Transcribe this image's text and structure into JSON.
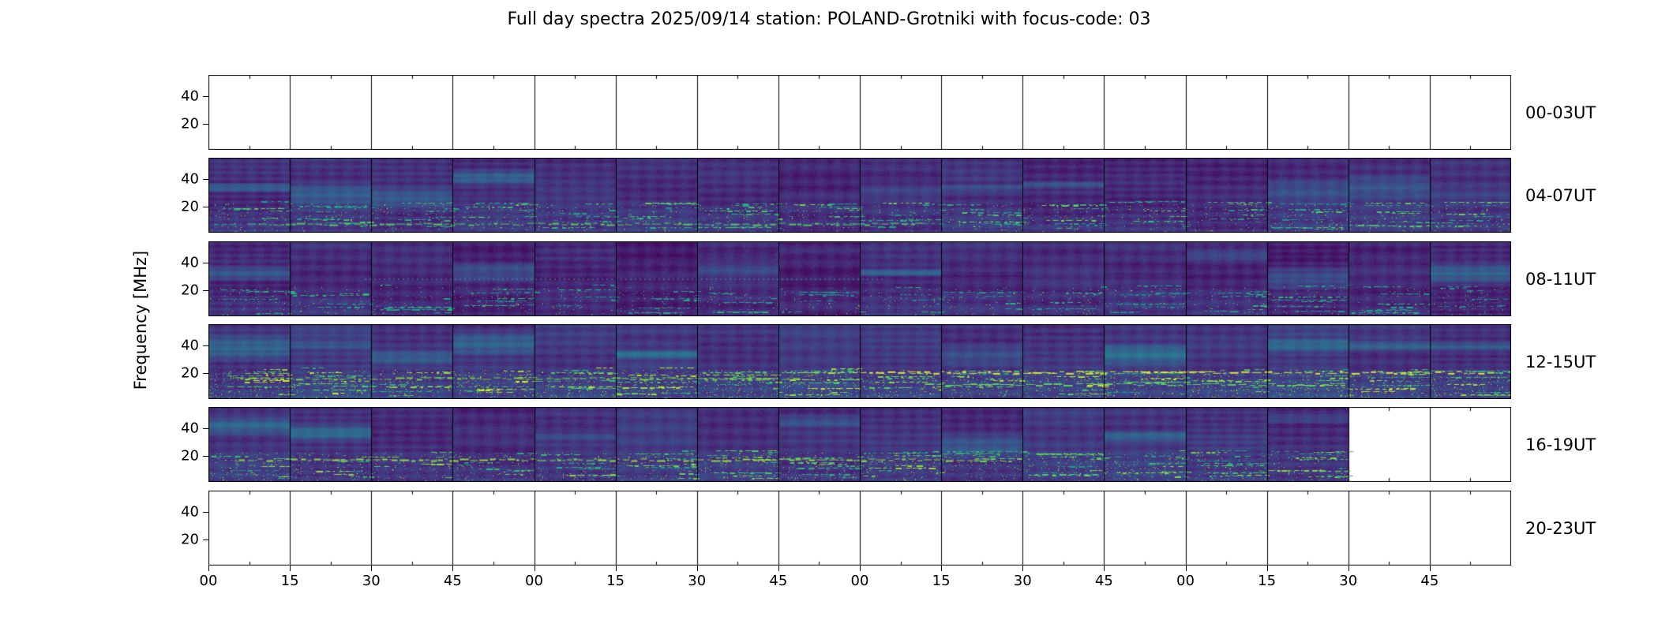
{
  "title": "Full day spectra 2025/09/14 station: POLAND-Grotniki with focus-code: 03",
  "ylabel": "Frequency [MHz]",
  "axes": {
    "y_tick_labels": [
      "40",
      "20"
    ],
    "x_tick_labels": [
      "00",
      "15",
      "30",
      "45",
      "00",
      "15",
      "30",
      "45",
      "00",
      "15",
      "30",
      "45",
      "00",
      "15",
      "30",
      "45"
    ]
  },
  "rows": [
    {
      "label": "00-03UT",
      "panels_filled": 0
    },
    {
      "label": "04-07UT",
      "panels_filled": 16,
      "intensity": 0.55
    },
    {
      "label": "08-11UT",
      "panels_filled": 16,
      "intensity": 0.35
    },
    {
      "label": "12-15UT",
      "panels_filled": 16,
      "intensity": 0.9
    },
    {
      "label": "16-19UT",
      "panels_filled": 14,
      "intensity": 0.7
    },
    {
      "label": "20-23UT",
      "panels_filled": 0
    }
  ],
  "panels_per_row": 16,
  "minutes_per_panel": 15,
  "colors": {
    "background": "#ffffff",
    "frame": "#000000",
    "colormap_name": "viridis",
    "colormap_low": "#440154",
    "colormap_mid": "#21918c",
    "colormap_high": "#fde725"
  },
  "chart_data": {
    "type": "heatmap",
    "subtype": "radio-spectrogram-montage",
    "title": "Full day spectra 2025/09/14 station: POLAND-Grotniki with focus-code: 03",
    "station": "POLAND-Grotniki",
    "date": "2025/09/14",
    "focus_code": "03",
    "ylabel": "Frequency [MHz]",
    "y_ticks_mhz": [
      20,
      40
    ],
    "y_axis_estimated_range_mhz": [
      5,
      55
    ],
    "x_tick_labels_minutes": [
      "00",
      "15",
      "30",
      "45",
      "00",
      "15",
      "30",
      "45",
      "00",
      "15",
      "30",
      "45",
      "00",
      "15",
      "30",
      "45"
    ],
    "panels_per_row": 16,
    "minutes_per_panel": 15,
    "colormap": "viridis",
    "legend": "none",
    "grid": false,
    "rows": [
      {
        "time_range": "00-03UT",
        "data_present": false,
        "coverage_panels": 0,
        "activity": "no data (blank panels)"
      },
      {
        "time_range": "04-07UT",
        "data_present": true,
        "coverage_panels": 16,
        "activity": "moderate - dark purple background with scattered green emission streaks below ~20 MHz and occasional teal bands near 40 MHz"
      },
      {
        "time_range": "08-11UT",
        "data_present": true,
        "coverage_panels": 16,
        "activity": "low - mostly dark background, faint teal structure, dotted interference line near 25 MHz"
      },
      {
        "time_range": "12-15UT",
        "data_present": true,
        "coverage_panels": 16,
        "activity": "high - strong yellow-green emission lines around 15-20 MHz across most panels"
      },
      {
        "time_range": "16-19UT",
        "data_present": true,
        "coverage_panels": 14,
        "activity": "moderate-high - bright green streaks below ~20 MHz; recording ends at 19:30 UT, last two panels blank"
      },
      {
        "time_range": "20-23UT",
        "data_present": false,
        "coverage_panels": 0,
        "activity": "no data (blank panels)"
      }
    ]
  }
}
